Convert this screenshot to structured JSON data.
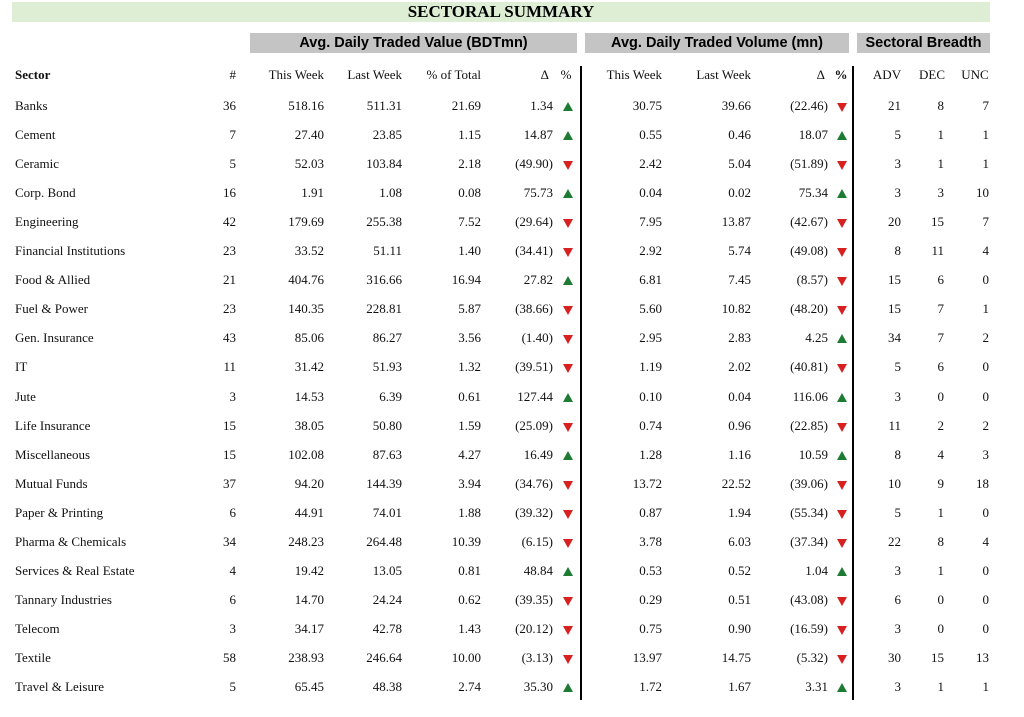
{
  "title": "SECTORAL SUMMARY",
  "groups": {
    "value": "Avg. Daily Traded Value (BDTmn)",
    "volume": "Avg. Daily Traded Volume (mn)",
    "breadth": "Sectoral Breadth"
  },
  "headers": {
    "sector": "Sector",
    "count": "#",
    "value_this_week": "This Week",
    "value_last_week": "Last Week",
    "pct_total": "% of Total",
    "value_delta": "Δ",
    "value_pct": "%",
    "volume_this_week": "This Week",
    "volume_last_week": "Last Week",
    "volume_delta": "Δ",
    "volume_pct": "%",
    "adv": "ADV",
    "dec": "DEC",
    "unc": "UNC"
  },
  "colors": {
    "up": "#1e7b34",
    "down": "#d82020",
    "title_bg": "#ddeed4",
    "group_bg": "#c4c4c4"
  },
  "rows": [
    {
      "sector": "Banks",
      "count": "36",
      "vt": "518.16",
      "vl": "511.31",
      "pt": "21.69",
      "vd": "1.34",
      "vdir": "up",
      "ot": "30.75",
      "ol": "39.66",
      "od": "(22.46)",
      "odir": "down",
      "adv": "21",
      "dec": "8",
      "unc": "7"
    },
    {
      "sector": "Cement",
      "count": "7",
      "vt": "27.40",
      "vl": "23.85",
      "pt": "1.15",
      "vd": "14.87",
      "vdir": "up",
      "ot": "0.55",
      "ol": "0.46",
      "od": "18.07",
      "odir": "up",
      "adv": "5",
      "dec": "1",
      "unc": "1"
    },
    {
      "sector": "Ceramic",
      "count": "5",
      "vt": "52.03",
      "vl": "103.84",
      "pt": "2.18",
      "vd": "(49.90)",
      "vdir": "down",
      "ot": "2.42",
      "ol": "5.04",
      "od": "(51.89)",
      "odir": "down",
      "adv": "3",
      "dec": "1",
      "unc": "1"
    },
    {
      "sector": "Corp. Bond",
      "count": "16",
      "vt": "1.91",
      "vl": "1.08",
      "pt": "0.08",
      "vd": "75.73",
      "vdir": "up",
      "ot": "0.04",
      "ol": "0.02",
      "od": "75.34",
      "odir": "up",
      "adv": "3",
      "dec": "3",
      "unc": "10"
    },
    {
      "sector": "Engineering",
      "count": "42",
      "vt": "179.69",
      "vl": "255.38",
      "pt": "7.52",
      "vd": "(29.64)",
      "vdir": "down",
      "ot": "7.95",
      "ol": "13.87",
      "od": "(42.67)",
      "odir": "down",
      "adv": "20",
      "dec": "15",
      "unc": "7"
    },
    {
      "sector": "Financial Institutions",
      "count": "23",
      "vt": "33.52",
      "vl": "51.11",
      "pt": "1.40",
      "vd": "(34.41)",
      "vdir": "down",
      "ot": "2.92",
      "ol": "5.74",
      "od": "(49.08)",
      "odir": "down",
      "adv": "8",
      "dec": "11",
      "unc": "4"
    },
    {
      "sector": "Food & Allied",
      "count": "21",
      "vt": "404.76",
      "vl": "316.66",
      "pt": "16.94",
      "vd": "27.82",
      "vdir": "up",
      "ot": "6.81",
      "ol": "7.45",
      "od": "(8.57)",
      "odir": "down",
      "adv": "15",
      "dec": "6",
      "unc": "0"
    },
    {
      "sector": "Fuel & Power",
      "count": "23",
      "vt": "140.35",
      "vl": "228.81",
      "pt": "5.87",
      "vd": "(38.66)",
      "vdir": "down",
      "ot": "5.60",
      "ol": "10.82",
      "od": "(48.20)",
      "odir": "down",
      "adv": "15",
      "dec": "7",
      "unc": "1"
    },
    {
      "sector": "Gen. Insurance",
      "count": "43",
      "vt": "85.06",
      "vl": "86.27",
      "pt": "3.56",
      "vd": "(1.40)",
      "vdir": "down",
      "ot": "2.95",
      "ol": "2.83",
      "od": "4.25",
      "odir": "up",
      "adv": "34",
      "dec": "7",
      "unc": "2"
    },
    {
      "sector": "IT",
      "count": "11",
      "vt": "31.42",
      "vl": "51.93",
      "pt": "1.32",
      "vd": "(39.51)",
      "vdir": "down",
      "ot": "1.19",
      "ol": "2.02",
      "od": "(40.81)",
      "odir": "down",
      "adv": "5",
      "dec": "6",
      "unc": "0"
    },
    {
      "sector": "Jute",
      "count": "3",
      "vt": "14.53",
      "vl": "6.39",
      "pt": "0.61",
      "vd": "127.44",
      "vdir": "up",
      "ot": "0.10",
      "ol": "0.04",
      "od": "116.06",
      "odir": "up",
      "adv": "3",
      "dec": "0",
      "unc": "0"
    },
    {
      "sector": "Life Insurance",
      "count": "15",
      "vt": "38.05",
      "vl": "50.80",
      "pt": "1.59",
      "vd": "(25.09)",
      "vdir": "down",
      "ot": "0.74",
      "ol": "0.96",
      "od": "(22.85)",
      "odir": "down",
      "adv": "11",
      "dec": "2",
      "unc": "2"
    },
    {
      "sector": "Miscellaneous",
      "count": "15",
      "vt": "102.08",
      "vl": "87.63",
      "pt": "4.27",
      "vd": "16.49",
      "vdir": "up",
      "ot": "1.28",
      "ol": "1.16",
      "od": "10.59",
      "odir": "up",
      "adv": "8",
      "dec": "4",
      "unc": "3"
    },
    {
      "sector": "Mutual Funds",
      "count": "37",
      "vt": "94.20",
      "vl": "144.39",
      "pt": "3.94",
      "vd": "(34.76)",
      "vdir": "down",
      "ot": "13.72",
      "ol": "22.52",
      "od": "(39.06)",
      "odir": "down",
      "adv": "10",
      "dec": "9",
      "unc": "18"
    },
    {
      "sector": "Paper & Printing",
      "count": "6",
      "vt": "44.91",
      "vl": "74.01",
      "pt": "1.88",
      "vd": "(39.32)",
      "vdir": "down",
      "ot": "0.87",
      "ol": "1.94",
      "od": "(55.34)",
      "odir": "down",
      "adv": "5",
      "dec": "1",
      "unc": "0"
    },
    {
      "sector": "Pharma & Chemicals",
      "count": "34",
      "vt": "248.23",
      "vl": "264.48",
      "pt": "10.39",
      "vd": "(6.15)",
      "vdir": "down",
      "ot": "3.78",
      "ol": "6.03",
      "od": "(37.34)",
      "odir": "down",
      "adv": "22",
      "dec": "8",
      "unc": "4"
    },
    {
      "sector": "Services & Real Estate",
      "count": "4",
      "vt": "19.42",
      "vl": "13.05",
      "pt": "0.81",
      "vd": "48.84",
      "vdir": "up",
      "ot": "0.53",
      "ol": "0.52",
      "od": "1.04",
      "odir": "up",
      "adv": "3",
      "dec": "1",
      "unc": "0"
    },
    {
      "sector": "Tannary Industries",
      "count": "6",
      "vt": "14.70",
      "vl": "24.24",
      "pt": "0.62",
      "vd": "(39.35)",
      "vdir": "down",
      "ot": "0.29",
      "ol": "0.51",
      "od": "(43.08)",
      "odir": "down",
      "adv": "6",
      "dec": "0",
      "unc": "0"
    },
    {
      "sector": "Telecom",
      "count": "3",
      "vt": "34.17",
      "vl": "42.78",
      "pt": "1.43",
      "vd": "(20.12)",
      "vdir": "down",
      "ot": "0.75",
      "ol": "0.90",
      "od": "(16.59)",
      "odir": "down",
      "adv": "3",
      "dec": "0",
      "unc": "0"
    },
    {
      "sector": "Textile",
      "count": "58",
      "vt": "238.93",
      "vl": "246.64",
      "pt": "10.00",
      "vd": "(3.13)",
      "vdir": "down",
      "ot": "13.97",
      "ol": "14.75",
      "od": "(5.32)",
      "odir": "down",
      "adv": "30",
      "dec": "15",
      "unc": "13"
    },
    {
      "sector": "Travel & Leisure",
      "count": "5",
      "vt": "65.45",
      "vl": "48.38",
      "pt": "2.74",
      "vd": "35.30",
      "vdir": "up",
      "ot": "1.72",
      "ol": "1.67",
      "od": "3.31",
      "odir": "up",
      "adv": "3",
      "dec": "1",
      "unc": "1"
    }
  ]
}
